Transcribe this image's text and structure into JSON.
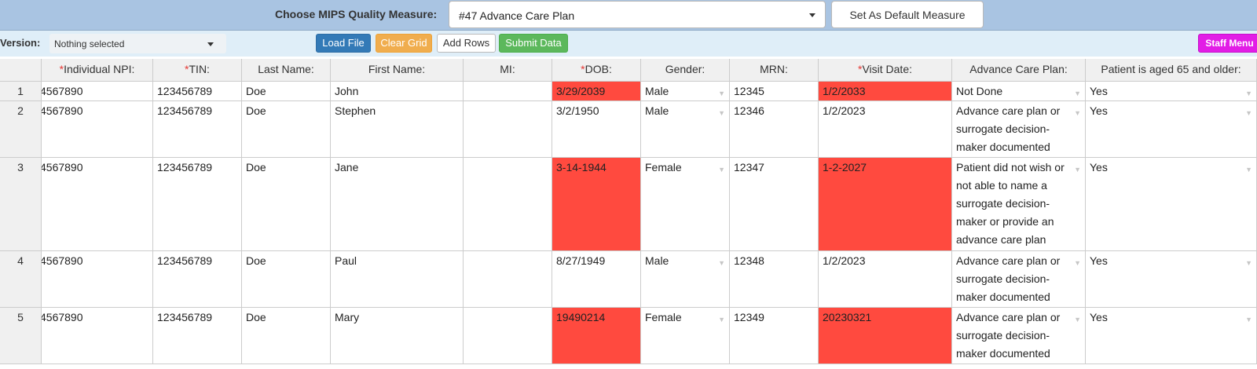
{
  "header": {
    "measure_label": "Choose MIPS Quality Measure:",
    "measure_value": "#47 Advance Care Plan",
    "default_button": "Set As Default Measure"
  },
  "toolbar": {
    "version_label": "Version:",
    "version_value": "Nothing selected",
    "load_file": "Load File",
    "clear_grid": "Clear Grid",
    "add_rows": "Add Rows",
    "submit_data": "Submit Data",
    "staff_menu": "Staff Menu"
  },
  "colors": {
    "header_bar": "#a9c4e2",
    "toolbar_bar": "#dfeef8",
    "invalid_cell": "#ff4a3f",
    "load_btn": "#337ab7",
    "clear_btn": "#f0ad4e",
    "submit_btn": "#5cb85c",
    "staff_btn": "#e21de6"
  },
  "grid": {
    "columns": [
      {
        "label": "Individual NPI:",
        "required": true
      },
      {
        "label": "TIN:",
        "required": true
      },
      {
        "label": "Last Name:",
        "required": false
      },
      {
        "label": "First Name:",
        "required": false
      },
      {
        "label": "MI:",
        "required": false
      },
      {
        "label": "DOB:",
        "required": true
      },
      {
        "label": "Gender:",
        "required": false
      },
      {
        "label": "MRN:",
        "required": false
      },
      {
        "label": "Visit Date:",
        "required": true
      },
      {
        "label": "Advance Care Plan:",
        "required": false
      },
      {
        "label": "Patient is aged 65 and older:",
        "required": false
      }
    ],
    "rows": [
      {
        "num": "1",
        "npi": "4567890",
        "tin": "123456789",
        "last": "Doe",
        "first": "John",
        "mi": "",
        "dob": "3/29/2039",
        "dob_invalid": true,
        "gender": "Male",
        "mrn": "12345",
        "visit": "1/2/2033",
        "visit_invalid": true,
        "acp": "Not Done",
        "aged": "Yes"
      },
      {
        "num": "2",
        "npi": "4567890",
        "tin": "123456789",
        "last": "Doe",
        "first": "Stephen",
        "mi": "",
        "dob": "3/2/1950",
        "dob_invalid": false,
        "gender": "Male",
        "mrn": "12346",
        "visit": "1/2/2023",
        "visit_invalid": false,
        "acp": "Advance care plan or surrogate decision-maker documented",
        "aged": "Yes"
      },
      {
        "num": "3",
        "npi": "4567890",
        "tin": "123456789",
        "last": "Doe",
        "first": "Jane",
        "mi": "",
        "dob": "3-14-1944",
        "dob_invalid": true,
        "gender": "Female",
        "mrn": "12347",
        "visit": "1-2-2027",
        "visit_invalid": true,
        "acp": "Patient did not wish or not able to name a surrogate decision-maker or provide an advance care plan",
        "aged": "Yes"
      },
      {
        "num": "4",
        "npi": "4567890",
        "tin": "123456789",
        "last": "Doe",
        "first": "Paul",
        "mi": "",
        "dob": "8/27/1949",
        "dob_invalid": false,
        "gender": "Male",
        "mrn": "12348",
        "visit": "1/2/2023",
        "visit_invalid": false,
        "acp": "Advance care plan or surrogate decision-maker documented",
        "aged": "Yes"
      },
      {
        "num": "5",
        "npi": "4567890",
        "tin": "123456789",
        "last": "Doe",
        "first": "Mary",
        "mi": "",
        "dob": "19490214",
        "dob_invalid": true,
        "gender": "Female",
        "mrn": "12349",
        "visit": "20230321",
        "visit_invalid": true,
        "acp": "Advance care plan or surrogate decision-maker documented",
        "aged": "Yes"
      }
    ]
  }
}
